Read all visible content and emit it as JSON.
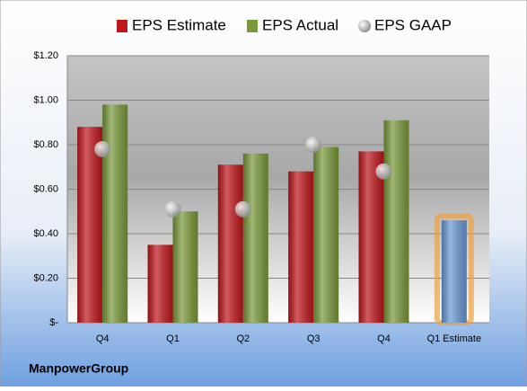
{
  "chart_data": {
    "type": "bar",
    "footer": "ManpowerGroup",
    "categories": [
      "Q4",
      "Q1",
      "Q2",
      "Q3",
      "Q4",
      "Q1 Estimate"
    ],
    "series": [
      {
        "name": "EPS Estimate",
        "color": "#c0171c",
        "colors": [
          "#c0171c",
          "#c0171c",
          "#c0171c",
          "#c0171c",
          "#c0171c",
          "#6b9ad6"
        ],
        "values": [
          0.88,
          0.35,
          0.71,
          0.68,
          0.77,
          0.46
        ]
      },
      {
        "name": "EPS Actual",
        "color": "#7a9a3a",
        "values": [
          0.98,
          0.5,
          0.76,
          0.79,
          0.91,
          null
        ]
      },
      {
        "name": "EPS GAAP",
        "color": "#a0a0a0",
        "marker": "circle",
        "values": [
          0.78,
          0.51,
          0.51,
          0.8,
          0.68,
          null
        ]
      }
    ],
    "ylim": [
      0,
      1.2
    ],
    "yticks": [
      {
        "value": 0,
        "label": "$-"
      },
      {
        "value": 0.2,
        "label": "$0.20"
      },
      {
        "value": 0.4,
        "label": "$0.40"
      },
      {
        "value": 0.6,
        "label": "$0.60"
      },
      {
        "value": 0.8,
        "label": "$0.80"
      },
      {
        "value": 1.0,
        "label": "$1.00"
      },
      {
        "value": 1.2,
        "label": "$1.20"
      }
    ],
    "grid": true
  }
}
